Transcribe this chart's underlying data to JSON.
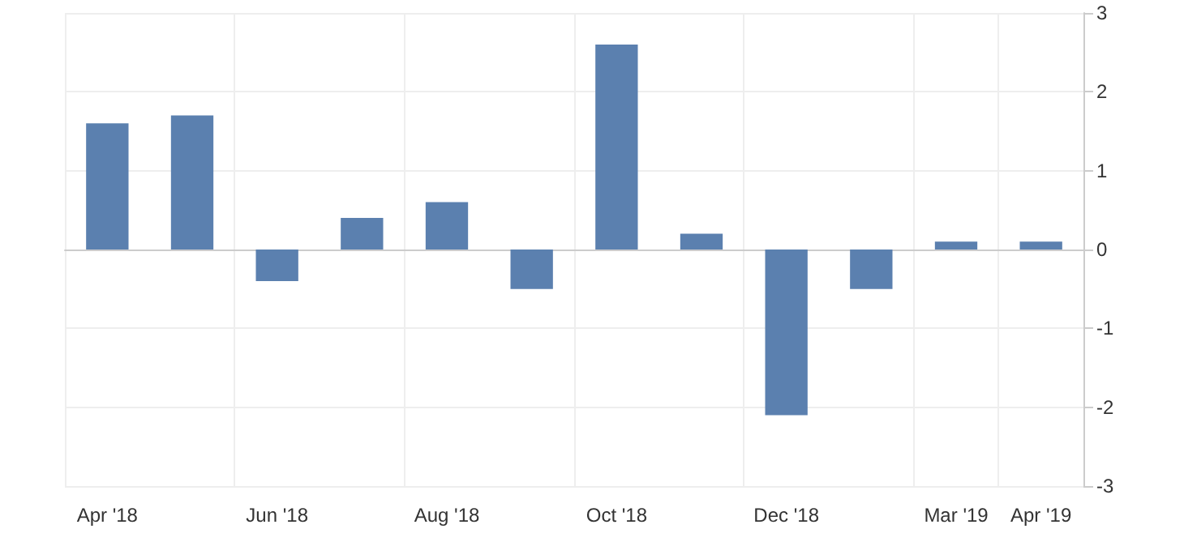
{
  "chart_data": {
    "type": "bar",
    "categories": [
      "Apr '18",
      null,
      "Jun '18",
      null,
      "Aug '18",
      null,
      "Oct '18",
      null,
      "Dec '18",
      null,
      "Mar '19",
      "Apr '19"
    ],
    "values": [
      1.6,
      1.7,
      -0.4,
      0.4,
      0.6,
      -0.5,
      2.6,
      0.2,
      -2.1,
      -0.5,
      0.1,
      0.1
    ],
    "color": "#5b80af",
    "ylim": [
      -3,
      3
    ],
    "yticks": [
      -3,
      -2,
      -1,
      0,
      1,
      2,
      3
    ],
    "grid": true
  }
}
